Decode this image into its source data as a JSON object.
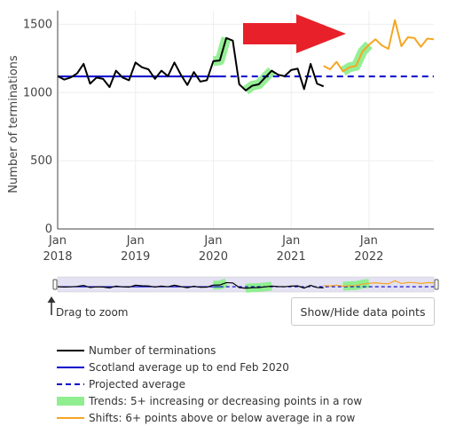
{
  "chart_data": {
    "type": "line",
    "ylabel": "Number of terminations",
    "yticks": [
      0,
      500,
      1000,
      1500
    ],
    "ylim": [
      0,
      1600
    ],
    "x_ticks": [
      {
        "date": "2018-01",
        "month": "Jan",
        "year": "2018"
      },
      {
        "date": "2019-01",
        "month": "Jan",
        "year": "2019"
      },
      {
        "date": "2020-01",
        "month": "Jan",
        "year": "2020"
      },
      {
        "date": "2021-01",
        "month": "Jan",
        "year": "2021"
      },
      {
        "date": "2022-01",
        "month": "Jan",
        "year": "2022"
      }
    ],
    "xlim": [
      "2018-01",
      "2022-11"
    ],
    "series": [
      {
        "name": "Number of terminations",
        "color": "#000000",
        "x": [
          "2018-01",
          "2018-02",
          "2018-03",
          "2018-04",
          "2018-05",
          "2018-06",
          "2018-07",
          "2018-08",
          "2018-09",
          "2018-10",
          "2018-11",
          "2018-12",
          "2019-01",
          "2019-02",
          "2019-03",
          "2019-04",
          "2019-05",
          "2019-06",
          "2019-07",
          "2019-08",
          "2019-09",
          "2019-10",
          "2019-11",
          "2019-12",
          "2020-01",
          "2020-02",
          "2020-03",
          "2020-04",
          "2020-05",
          "2020-06",
          "2020-07",
          "2020-08",
          "2020-09",
          "2020-10",
          "2020-11",
          "2020-12",
          "2021-01",
          "2021-02",
          "2021-03",
          "2021-04",
          "2021-05",
          "2021-06"
        ],
        "y": [
          1120,
          1095,
          1110,
          1140,
          1210,
          1065,
          1110,
          1100,
          1040,
          1160,
          1110,
          1090,
          1220,
          1185,
          1170,
          1100,
          1160,
          1120,
          1220,
          1130,
          1055,
          1150,
          1080,
          1090,
          1230,
          1235,
          1400,
          1380,
          1060,
          1015,
          1050,
          1060,
          1110,
          1160,
          1130,
          1120,
          1165,
          1175,
          1025,
          1210,
          1065,
          1045
        ]
      },
      {
        "name": "Shifts: 6+ points above or below average in a row",
        "color": "#f5a623",
        "x": [
          "2021-06",
          "2021-07",
          "2021-08",
          "2021-09",
          "2021-10",
          "2021-11",
          "2021-12",
          "2022-01",
          "2022-02",
          "2022-03",
          "2022-04",
          "2022-05",
          "2022-06",
          "2022-07",
          "2022-08",
          "2022-09",
          "2022-10",
          "2022-11"
        ],
        "y": [
          1195,
          1170,
          1225,
          1155,
          1185,
          1195,
          1300,
          1350,
          1390,
          1345,
          1320,
          1530,
          1340,
          1405,
          1400,
          1335,
          1395,
          1390
        ]
      }
    ],
    "scotland_average": {
      "name": "Scotland average up to end Feb 2020",
      "value": 1118,
      "color": "#0000cc",
      "x_end": "2020-02"
    },
    "projected_average": {
      "name": "Projected average",
      "value": 1118,
      "color": "#0000cc",
      "x_start": "2020-02"
    },
    "trends": {
      "name": "Trends: 5+ increasing or decreasing points in a row",
      "color": "#90ee90",
      "segments": [
        [
          "2020-01",
          "2020-02",
          "2020-03"
        ],
        [
          "2020-06",
          "2020-07",
          "2020-08",
          "2020-09",
          "2020-10"
        ],
        [
          "2021-09",
          "2021-10",
          "2021-11",
          "2021-12",
          "2022-01"
        ]
      ]
    },
    "annotation_arrow": {
      "color": "#e8202a",
      "direction": "right"
    }
  },
  "rangeslider": {
    "drag_hint": "Drag to zoom"
  },
  "button": {
    "label": "Show/Hide data points"
  },
  "legend": [
    {
      "label": "Number of terminations",
      "color": "#000000",
      "style": "solid"
    },
    {
      "label": "Scotland average up to end Feb 2020",
      "color": "#0000cc",
      "style": "solid"
    },
    {
      "label": "Projected average",
      "color": "#0000cc",
      "style": "dashed"
    },
    {
      "label": "Trends: 5+ increasing or decreasing points in a row",
      "color": "#90ee90",
      "style": "band"
    },
    {
      "label": "Shifts: 6+ points above or below average in a row",
      "color": "#f5a623",
      "style": "solid"
    }
  ]
}
